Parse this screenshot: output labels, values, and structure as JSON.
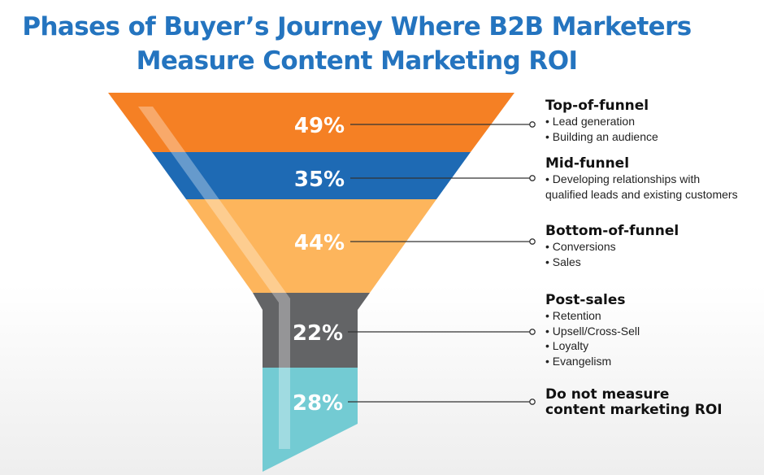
{
  "title": {
    "line1": "Phases of Buyer’s Journey Where B2B Marketers",
    "line2": "Measure Content Marketing ROI"
  },
  "stages": [
    {
      "heading": "Top-of-funnel",
      "bullets": [
        "• Lead generation",
        "• Building an audience"
      ],
      "percent": "49%",
      "value": 49,
      "color": "#f58024"
    },
    {
      "heading": "Mid-funnel",
      "bullets": [
        "• Developing relationships with",
        "qualified leads and existing customers"
      ],
      "percent": "35%",
      "value": 35,
      "color": "#1e6ab4"
    },
    {
      "heading": "Bottom-of-funnel",
      "bullets": [
        "• Conversions",
        "• Sales"
      ],
      "percent": "44%",
      "value": 44,
      "color": "#fdb55c"
    },
    {
      "heading": "Post-sales",
      "bullets": [
        "• Retention",
        "• Upsell/Cross-Sell",
        "• Loyalty",
        "• Evangelism"
      ],
      "percent": "22%",
      "value": 22,
      "color": "#636466"
    },
    {
      "heading": "Do not measure content marketing ROI",
      "heading_lines": [
        "Do not measure",
        "content marketing ROI"
      ],
      "bullets": [],
      "percent": "28%",
      "value": 28,
      "color": "#73cbd3"
    }
  ]
}
